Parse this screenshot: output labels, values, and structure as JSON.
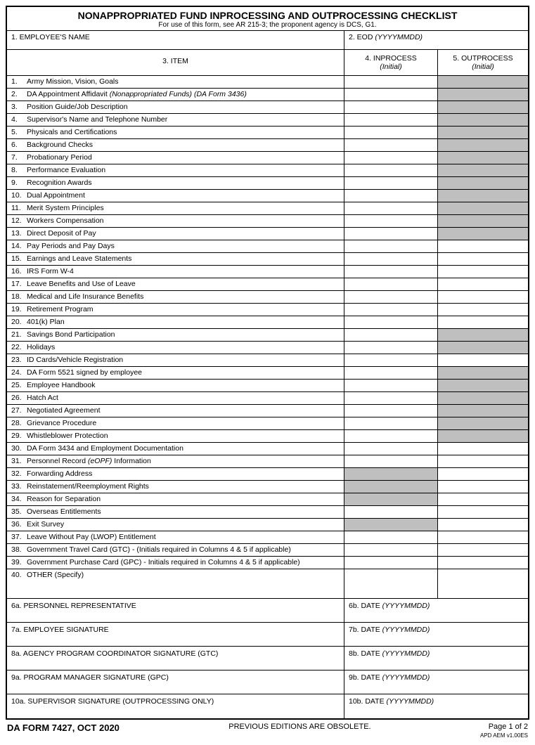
{
  "title": "NONAPPROPRIATED FUND INPROCESSING AND OUTPROCESSING CHECKLIST",
  "subtitle": "For use of this form, see AR 215-3; the proponent agency is DCS, G1.",
  "field1": "1.  EMPLOYEE'S NAME",
  "field2_a": "2.  EOD ",
  "field2_b": "(YYYYMMDD)",
  "field3": "3.  ITEM",
  "field4_a": "4.  INPROCESS",
  "field4_b": "(Initial)",
  "field5_a": "5.  OUTPROCESS",
  "field5_b": "(Initial)",
  "items": [
    {
      "n": "1.",
      "d": "Army Mission, Vision, Goals",
      "si": false,
      "so": true
    },
    {
      "n": "2.",
      "d": "DA Appointment Affidavit (Nonappropriated Funds) (DA Form 3436)",
      "si": false,
      "so": true,
      "it": true
    },
    {
      "n": "3.",
      "d": "Position Guide/Job Description",
      "si": false,
      "so": true
    },
    {
      "n": "4.",
      "d": "Supervisor's Name and Telephone Number",
      "si": false,
      "so": true
    },
    {
      "n": "5.",
      "d": "Physicals and Certifications",
      "si": false,
      "so": true
    },
    {
      "n": "6.",
      "d": "Background Checks",
      "si": false,
      "so": true
    },
    {
      "n": "7.",
      "d": "Probationary Period",
      "si": false,
      "so": true
    },
    {
      "n": "8.",
      "d": "Performance Evaluation",
      "si": false,
      "so": true
    },
    {
      "n": "9.",
      "d": "Recognition Awards",
      "si": false,
      "so": true
    },
    {
      "n": "10.",
      "d": "Dual Appointment",
      "si": false,
      "so": true
    },
    {
      "n": "11.",
      "d": "Merit System Principles",
      "si": false,
      "so": true
    },
    {
      "n": "12.",
      "d": "Workers Compensation",
      "si": false,
      "so": true
    },
    {
      "n": "13.",
      "d": "Direct Deposit of Pay",
      "si": false,
      "so": true
    },
    {
      "n": "14.",
      "d": "Pay Periods and Pay Days",
      "si": false,
      "so": false
    },
    {
      "n": "15.",
      "d": "Earnings and Leave Statements",
      "si": false,
      "so": false
    },
    {
      "n": "16.",
      "d": "IRS Form W-4",
      "si": false,
      "so": false
    },
    {
      "n": "17.",
      "d": "Leave Benefits and Use of Leave",
      "si": false,
      "so": false
    },
    {
      "n": "18.",
      "d": "Medical and Life Insurance Benefits",
      "si": false,
      "so": false
    },
    {
      "n": "19.",
      "d": "Retirement Program",
      "si": false,
      "so": false
    },
    {
      "n": "20.",
      "d": "401(k) Plan",
      "si": false,
      "so": false
    },
    {
      "n": "21.",
      "d": "Savings Bond Participation",
      "si": false,
      "so": true
    },
    {
      "n": "22.",
      "d": "Holidays",
      "si": false,
      "so": true
    },
    {
      "n": "23.",
      "d": "ID Cards/Vehicle Registration",
      "si": false,
      "so": false
    },
    {
      "n": "24.",
      "d": "DA Form 5521 signed by employee",
      "si": false,
      "so": true
    },
    {
      "n": "25.",
      "d": "Employee Handbook",
      "si": false,
      "so": true
    },
    {
      "n": "26.",
      "d": "Hatch Act",
      "si": false,
      "so": true
    },
    {
      "n": "27.",
      "d": "Negotiated Agreement",
      "si": false,
      "so": true
    },
    {
      "n": "28.",
      "d": "Grievance Procedure",
      "si": false,
      "so": true
    },
    {
      "n": "29.",
      "d": "Whistleblower Protection",
      "si": false,
      "so": true
    },
    {
      "n": "30.",
      "d": "DA Form 3434 and Employment Documentation",
      "si": false,
      "so": false
    },
    {
      "n": "31.",
      "d": "Personnel Record (eOPF) Information",
      "si": false,
      "so": false,
      "it2": true
    },
    {
      "n": "32.",
      "d": "Forwarding Address",
      "si": true,
      "so": false
    },
    {
      "n": "33.",
      "d": "Reinstatement/Reemployment Rights",
      "si": true,
      "so": false
    },
    {
      "n": "34.",
      "d": "Reason for Separation",
      "si": true,
      "so": false
    },
    {
      "n": "35.",
      "d": "Overseas Entitlements",
      "si": false,
      "so": false
    },
    {
      "n": "36.",
      "d": "Exit Survey",
      "si": true,
      "so": false
    },
    {
      "n": "37.",
      "d": "Leave Without Pay (LWOP) Entitlement",
      "si": false,
      "so": false
    },
    {
      "n": "38.",
      "d": "Government Travel Card (GTC) - (Initials required in Columns 4 & 5 if applicable)",
      "si": false,
      "so": false
    },
    {
      "n": "39.",
      "d": "Government Purchase Card (GPC) - Initials required in Columns 4 & 5 if applicable)",
      "si": false,
      "so": false
    },
    {
      "n": "40.",
      "d": "OTHER  (Specify)",
      "si": false,
      "so": false,
      "other": true
    }
  ],
  "sigs": [
    {
      "l": "6a.  PERSONNEL REPRESENTATIVE",
      "r": "6b.  DATE  (YYYYMMDD)"
    },
    {
      "l": "7a.  EMPLOYEE SIGNATURE",
      "r": "7b.  DATE  (YYYYMMDD)"
    },
    {
      "l": "8a.  AGENCY PROGRAM COORDINATOR SIGNATURE (GTC)",
      "r": "8b.  DATE  (YYYYMMDD)"
    },
    {
      "l": "9a.  PROGRAM MANAGER SIGNATURE (GPC)",
      "r": "9b.  DATE  (YYYYMMDD)"
    },
    {
      "l": "10a.  SUPERVISOR SIGNATURE (OUTPROCESSING ONLY)",
      "r": "10b.  DATE  (YYYYMMDD)"
    }
  ],
  "footer_left": "DA FORM 7427, OCT 2020",
  "footer_center": "PREVIOUS EDITIONS ARE OBSOLETE.",
  "footer_page": "Page 1 of 2",
  "footer_tiny": "APD AEM v1.00ES"
}
